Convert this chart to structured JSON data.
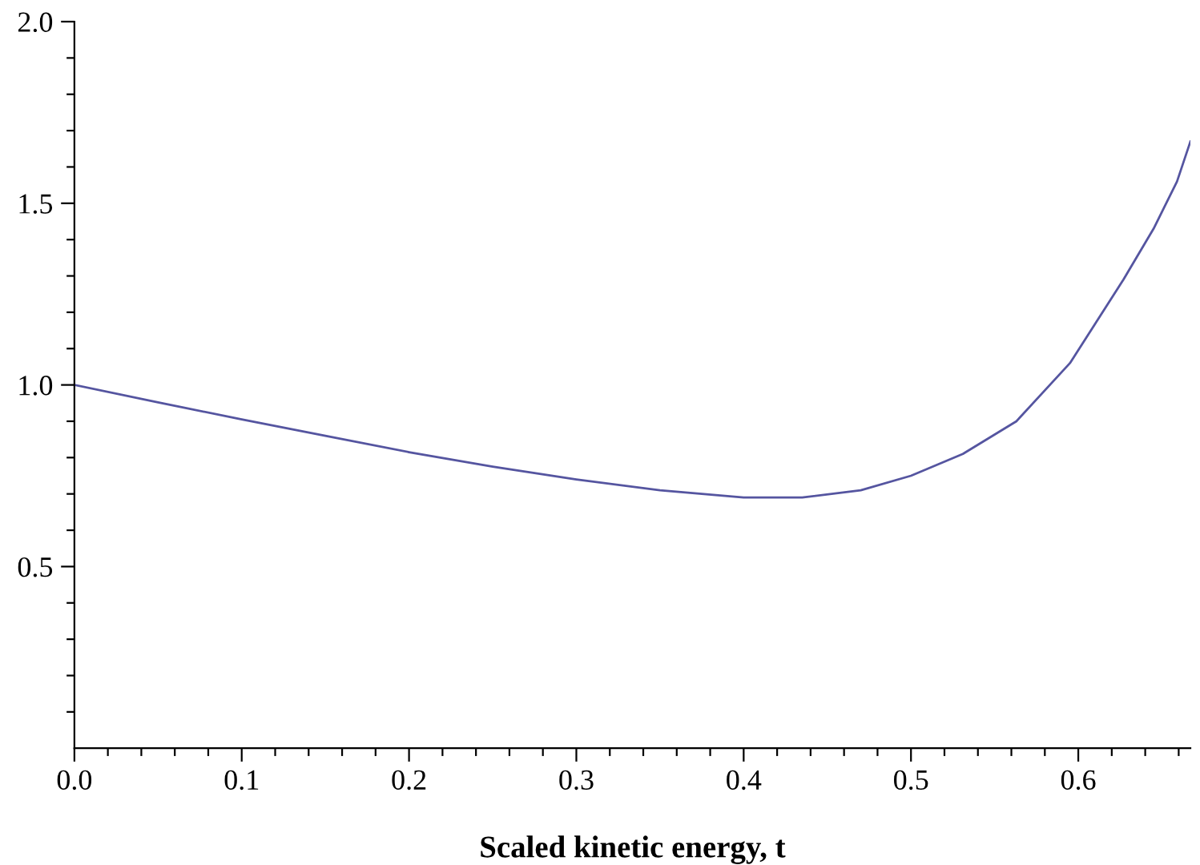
{
  "chart_data": {
    "type": "line",
    "xlabel": "Scaled kinetic energy, t",
    "x": [
      0,
      0.05,
      0.1,
      0.15,
      0.2,
      0.25,
      0.3,
      0.35,
      0.4,
      0.435,
      0.47,
      0.5,
      0.531,
      0.563,
      0.595,
      0.627,
      0.645,
      0.659,
      0.667
    ],
    "series": [
      {
        "color": "#5555a0",
        "values": [
          1.0,
          0.952,
          0.905,
          0.86,
          0.815,
          0.775,
          0.74,
          0.71,
          0.69,
          0.69,
          0.71,
          0.75,
          0.81,
          0.9,
          1.06,
          1.29,
          1.43,
          1.56,
          1.67
        ]
      }
    ],
    "xlim": [
      0,
      0.667
    ],
    "ylim": [
      0,
      2.0
    ],
    "xticks": [
      {
        "value": 0.0,
        "label": "0.0"
      },
      {
        "value": 0.02,
        "label": null
      },
      {
        "value": 0.04,
        "label": null
      },
      {
        "value": 0.06,
        "label": null
      },
      {
        "value": 0.08,
        "label": null
      },
      0.1,
      {
        "value": 0.12,
        "label": null
      },
      {
        "value": 0.14,
        "label": null
      },
      {
        "value": 0.16,
        "label": null
      },
      {
        "value": 0.18,
        "label": null
      },
      0.2,
      {
        "value": 0.22,
        "label": null
      },
      {
        "value": 0.24,
        "label": null
      },
      {
        "value": 0.26,
        "label": null
      },
      {
        "value": 0.28,
        "label": null
      },
      0.3,
      {
        "value": 0.32,
        "label": null
      },
      {
        "value": 0.34,
        "label": null
      },
      {
        "value": 0.36,
        "label": null
      },
      {
        "value": 0.38,
        "label": null
      },
      0.4,
      {
        "value": 0.42,
        "label": null
      },
      {
        "value": 0.44,
        "label": null
      },
      {
        "value": 0.46,
        "label": null
      },
      {
        "value": 0.48,
        "label": null
      },
      0.5,
      {
        "value": 0.52,
        "label": null
      },
      {
        "value": 0.54,
        "label": null
      },
      {
        "value": 0.56,
        "label": null
      },
      {
        "value": 0.58,
        "label": null
      },
      0.6,
      {
        "value": 0.62,
        "label": null
      },
      {
        "value": 0.64,
        "label": null
      },
      {
        "value": 0.66,
        "label": null
      }
    ],
    "yticks": [
      {
        "value": 0.1,
        "label": null
      },
      {
        "value": 0.2,
        "label": null
      },
      {
        "value": 0.3,
        "label": null
      },
      {
        "value": 0.4,
        "label": null
      },
      0.5,
      {
        "value": 0.6,
        "label": null
      },
      {
        "value": 0.7,
        "label": null
      },
      {
        "value": 0.8,
        "label": null
      },
      {
        "value": 0.9,
        "label": null
      },
      {
        "value": 1.0,
        "label": "1.0"
      },
      {
        "value": 1.1,
        "label": null
      },
      {
        "value": 1.2,
        "label": null
      },
      {
        "value": 1.3,
        "label": null
      },
      {
        "value": 1.4,
        "label": null
      },
      1.5,
      {
        "value": 1.6,
        "label": null
      },
      {
        "value": 1.7,
        "label": null
      },
      {
        "value": 1.8,
        "label": null
      },
      {
        "value": 1.9,
        "label": null
      },
      {
        "value": 2.0,
        "label": "2.0"
      }
    ],
    "grid": false,
    "marker": "none",
    "line_style": "solid"
  }
}
